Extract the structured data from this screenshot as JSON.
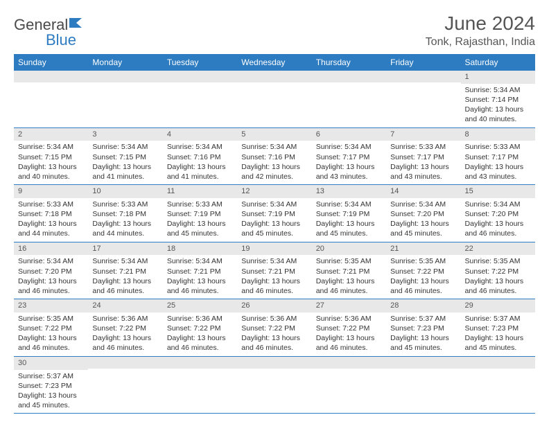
{
  "brand": {
    "name1": "General",
    "name2": "Blue"
  },
  "title": "June 2024",
  "location": "Tonk, Rajasthan, India",
  "colors": {
    "header_bg": "#2d7bc0",
    "header_text": "#ffffff",
    "daynum_bg": "#e8e8e8",
    "border": "#2d7bc0",
    "text": "#333333"
  },
  "day_headers": [
    "Sunday",
    "Monday",
    "Tuesday",
    "Wednesday",
    "Thursday",
    "Friday",
    "Saturday"
  ],
  "weeks": [
    [
      {
        "n": "",
        "sr": "",
        "ss": "",
        "dl": ""
      },
      {
        "n": "",
        "sr": "",
        "ss": "",
        "dl": ""
      },
      {
        "n": "",
        "sr": "",
        "ss": "",
        "dl": ""
      },
      {
        "n": "",
        "sr": "",
        "ss": "",
        "dl": ""
      },
      {
        "n": "",
        "sr": "",
        "ss": "",
        "dl": ""
      },
      {
        "n": "",
        "sr": "",
        "ss": "",
        "dl": ""
      },
      {
        "n": "1",
        "sr": "Sunrise: 5:34 AM",
        "ss": "Sunset: 7:14 PM",
        "dl": "Daylight: 13 hours and 40 minutes."
      }
    ],
    [
      {
        "n": "2",
        "sr": "Sunrise: 5:34 AM",
        "ss": "Sunset: 7:15 PM",
        "dl": "Daylight: 13 hours and 40 minutes."
      },
      {
        "n": "3",
        "sr": "Sunrise: 5:34 AM",
        "ss": "Sunset: 7:15 PM",
        "dl": "Daylight: 13 hours and 41 minutes."
      },
      {
        "n": "4",
        "sr": "Sunrise: 5:34 AM",
        "ss": "Sunset: 7:16 PM",
        "dl": "Daylight: 13 hours and 41 minutes."
      },
      {
        "n": "5",
        "sr": "Sunrise: 5:34 AM",
        "ss": "Sunset: 7:16 PM",
        "dl": "Daylight: 13 hours and 42 minutes."
      },
      {
        "n": "6",
        "sr": "Sunrise: 5:34 AM",
        "ss": "Sunset: 7:17 PM",
        "dl": "Daylight: 13 hours and 43 minutes."
      },
      {
        "n": "7",
        "sr": "Sunrise: 5:33 AM",
        "ss": "Sunset: 7:17 PM",
        "dl": "Daylight: 13 hours and 43 minutes."
      },
      {
        "n": "8",
        "sr": "Sunrise: 5:33 AM",
        "ss": "Sunset: 7:17 PM",
        "dl": "Daylight: 13 hours and 43 minutes."
      }
    ],
    [
      {
        "n": "9",
        "sr": "Sunrise: 5:33 AM",
        "ss": "Sunset: 7:18 PM",
        "dl": "Daylight: 13 hours and 44 minutes."
      },
      {
        "n": "10",
        "sr": "Sunrise: 5:33 AM",
        "ss": "Sunset: 7:18 PM",
        "dl": "Daylight: 13 hours and 44 minutes."
      },
      {
        "n": "11",
        "sr": "Sunrise: 5:33 AM",
        "ss": "Sunset: 7:19 PM",
        "dl": "Daylight: 13 hours and 45 minutes."
      },
      {
        "n": "12",
        "sr": "Sunrise: 5:34 AM",
        "ss": "Sunset: 7:19 PM",
        "dl": "Daylight: 13 hours and 45 minutes."
      },
      {
        "n": "13",
        "sr": "Sunrise: 5:34 AM",
        "ss": "Sunset: 7:19 PM",
        "dl": "Daylight: 13 hours and 45 minutes."
      },
      {
        "n": "14",
        "sr": "Sunrise: 5:34 AM",
        "ss": "Sunset: 7:20 PM",
        "dl": "Daylight: 13 hours and 45 minutes."
      },
      {
        "n": "15",
        "sr": "Sunrise: 5:34 AM",
        "ss": "Sunset: 7:20 PM",
        "dl": "Daylight: 13 hours and 46 minutes."
      }
    ],
    [
      {
        "n": "16",
        "sr": "Sunrise: 5:34 AM",
        "ss": "Sunset: 7:20 PM",
        "dl": "Daylight: 13 hours and 46 minutes."
      },
      {
        "n": "17",
        "sr": "Sunrise: 5:34 AM",
        "ss": "Sunset: 7:21 PM",
        "dl": "Daylight: 13 hours and 46 minutes."
      },
      {
        "n": "18",
        "sr": "Sunrise: 5:34 AM",
        "ss": "Sunset: 7:21 PM",
        "dl": "Daylight: 13 hours and 46 minutes."
      },
      {
        "n": "19",
        "sr": "Sunrise: 5:34 AM",
        "ss": "Sunset: 7:21 PM",
        "dl": "Daylight: 13 hours and 46 minutes."
      },
      {
        "n": "20",
        "sr": "Sunrise: 5:35 AM",
        "ss": "Sunset: 7:21 PM",
        "dl": "Daylight: 13 hours and 46 minutes."
      },
      {
        "n": "21",
        "sr": "Sunrise: 5:35 AM",
        "ss": "Sunset: 7:22 PM",
        "dl": "Daylight: 13 hours and 46 minutes."
      },
      {
        "n": "22",
        "sr": "Sunrise: 5:35 AM",
        "ss": "Sunset: 7:22 PM",
        "dl": "Daylight: 13 hours and 46 minutes."
      }
    ],
    [
      {
        "n": "23",
        "sr": "Sunrise: 5:35 AM",
        "ss": "Sunset: 7:22 PM",
        "dl": "Daylight: 13 hours and 46 minutes."
      },
      {
        "n": "24",
        "sr": "Sunrise: 5:36 AM",
        "ss": "Sunset: 7:22 PM",
        "dl": "Daylight: 13 hours and 46 minutes."
      },
      {
        "n": "25",
        "sr": "Sunrise: 5:36 AM",
        "ss": "Sunset: 7:22 PM",
        "dl": "Daylight: 13 hours and 46 minutes."
      },
      {
        "n": "26",
        "sr": "Sunrise: 5:36 AM",
        "ss": "Sunset: 7:22 PM",
        "dl": "Daylight: 13 hours and 46 minutes."
      },
      {
        "n": "27",
        "sr": "Sunrise: 5:36 AM",
        "ss": "Sunset: 7:22 PM",
        "dl": "Daylight: 13 hours and 46 minutes."
      },
      {
        "n": "28",
        "sr": "Sunrise: 5:37 AM",
        "ss": "Sunset: 7:23 PM",
        "dl": "Daylight: 13 hours and 45 minutes."
      },
      {
        "n": "29",
        "sr": "Sunrise: 5:37 AM",
        "ss": "Sunset: 7:23 PM",
        "dl": "Daylight: 13 hours and 45 minutes."
      }
    ],
    [
      {
        "n": "30",
        "sr": "Sunrise: 5:37 AM",
        "ss": "Sunset: 7:23 PM",
        "dl": "Daylight: 13 hours and 45 minutes."
      },
      {
        "n": "",
        "sr": "",
        "ss": "",
        "dl": ""
      },
      {
        "n": "",
        "sr": "",
        "ss": "",
        "dl": ""
      },
      {
        "n": "",
        "sr": "",
        "ss": "",
        "dl": ""
      },
      {
        "n": "",
        "sr": "",
        "ss": "",
        "dl": ""
      },
      {
        "n": "",
        "sr": "",
        "ss": "",
        "dl": ""
      },
      {
        "n": "",
        "sr": "",
        "ss": "",
        "dl": ""
      }
    ]
  ]
}
